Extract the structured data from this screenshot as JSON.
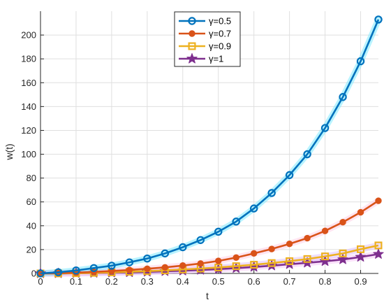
{
  "chart_data": {
    "type": "line",
    "xlabel": "t",
    "ylabel": "w(t)",
    "xlim": [
      0,
      0.95
    ],
    "ylim": [
      0,
      220
    ],
    "xticks": [
      0,
      0.1,
      0.2,
      0.3,
      0.4,
      0.5,
      0.6,
      0.7,
      0.8,
      0.9
    ],
    "xtick_labels": [
      "0",
      "0.1",
      "0.2",
      "0.3",
      "0.4",
      "0.5",
      "0.6",
      "0.7",
      "0.8",
      "0.9"
    ],
    "yticks": [
      0,
      20,
      40,
      60,
      80,
      100,
      120,
      140,
      160,
      180,
      200
    ],
    "ytick_labels": [
      "0",
      "20",
      "40",
      "60",
      "80",
      "100",
      "120",
      "140",
      "160",
      "180",
      "200"
    ],
    "grid": true,
    "legend_position": "top-center",
    "x": [
      0,
      0.05,
      0.1,
      0.15,
      0.2,
      0.25,
      0.3,
      0.35,
      0.4,
      0.45,
      0.5,
      0.55,
      0.6,
      0.65,
      0.7,
      0.75,
      0.8,
      0.85,
      0.9,
      0.95
    ],
    "series": [
      {
        "name": "γ=0.5",
        "color": "#0072BD",
        "shadow": "#7fe9ff",
        "marker": "circle",
        "values": [
          0,
          1,
          2.5,
          4.5,
          6.5,
          9.3,
          12.5,
          16.8,
          22,
          28,
          35,
          43.5,
          54.5,
          67.5,
          82.5,
          100,
          122,
          148,
          178,
          213
        ]
      },
      {
        "name": "γ=0.7",
        "color": "#D95319",
        "shadow": "#ffd0e6",
        "marker": "filled-circle",
        "values": [
          0,
          0.2,
          0.7,
          1.3,
          2.0,
          2.9,
          3.9,
          5.1,
          6.6,
          8.3,
          10.5,
          13.3,
          16.8,
          20.5,
          24.8,
          29.6,
          35.7,
          43,
          51.3,
          61
        ]
      },
      {
        "name": "γ=0.9",
        "color": "#EDB120",
        "shadow": "#e0c3ff",
        "marker": "square",
        "values": [
          0,
          0.05,
          0.2,
          0.5,
          0.9,
          1.4,
          1.9,
          2.6,
          3.3,
          4.1,
          5.0,
          6.1,
          7.3,
          8.7,
          10.3,
          12.1,
          14.3,
          16.8,
          20.3,
          23.5
        ]
      },
      {
        "name": "γ=1",
        "color": "#7E2F8E",
        "shadow": "#f6c8f6",
        "marker": "star",
        "values": [
          0,
          0.03,
          0.15,
          0.35,
          0.6,
          0.9,
          1.3,
          1.8,
          2.3,
          2.9,
          3.6,
          4.4,
          5.4,
          6.5,
          7.7,
          8.9,
          10.2,
          11.7,
          13.8,
          16.2
        ]
      }
    ]
  }
}
